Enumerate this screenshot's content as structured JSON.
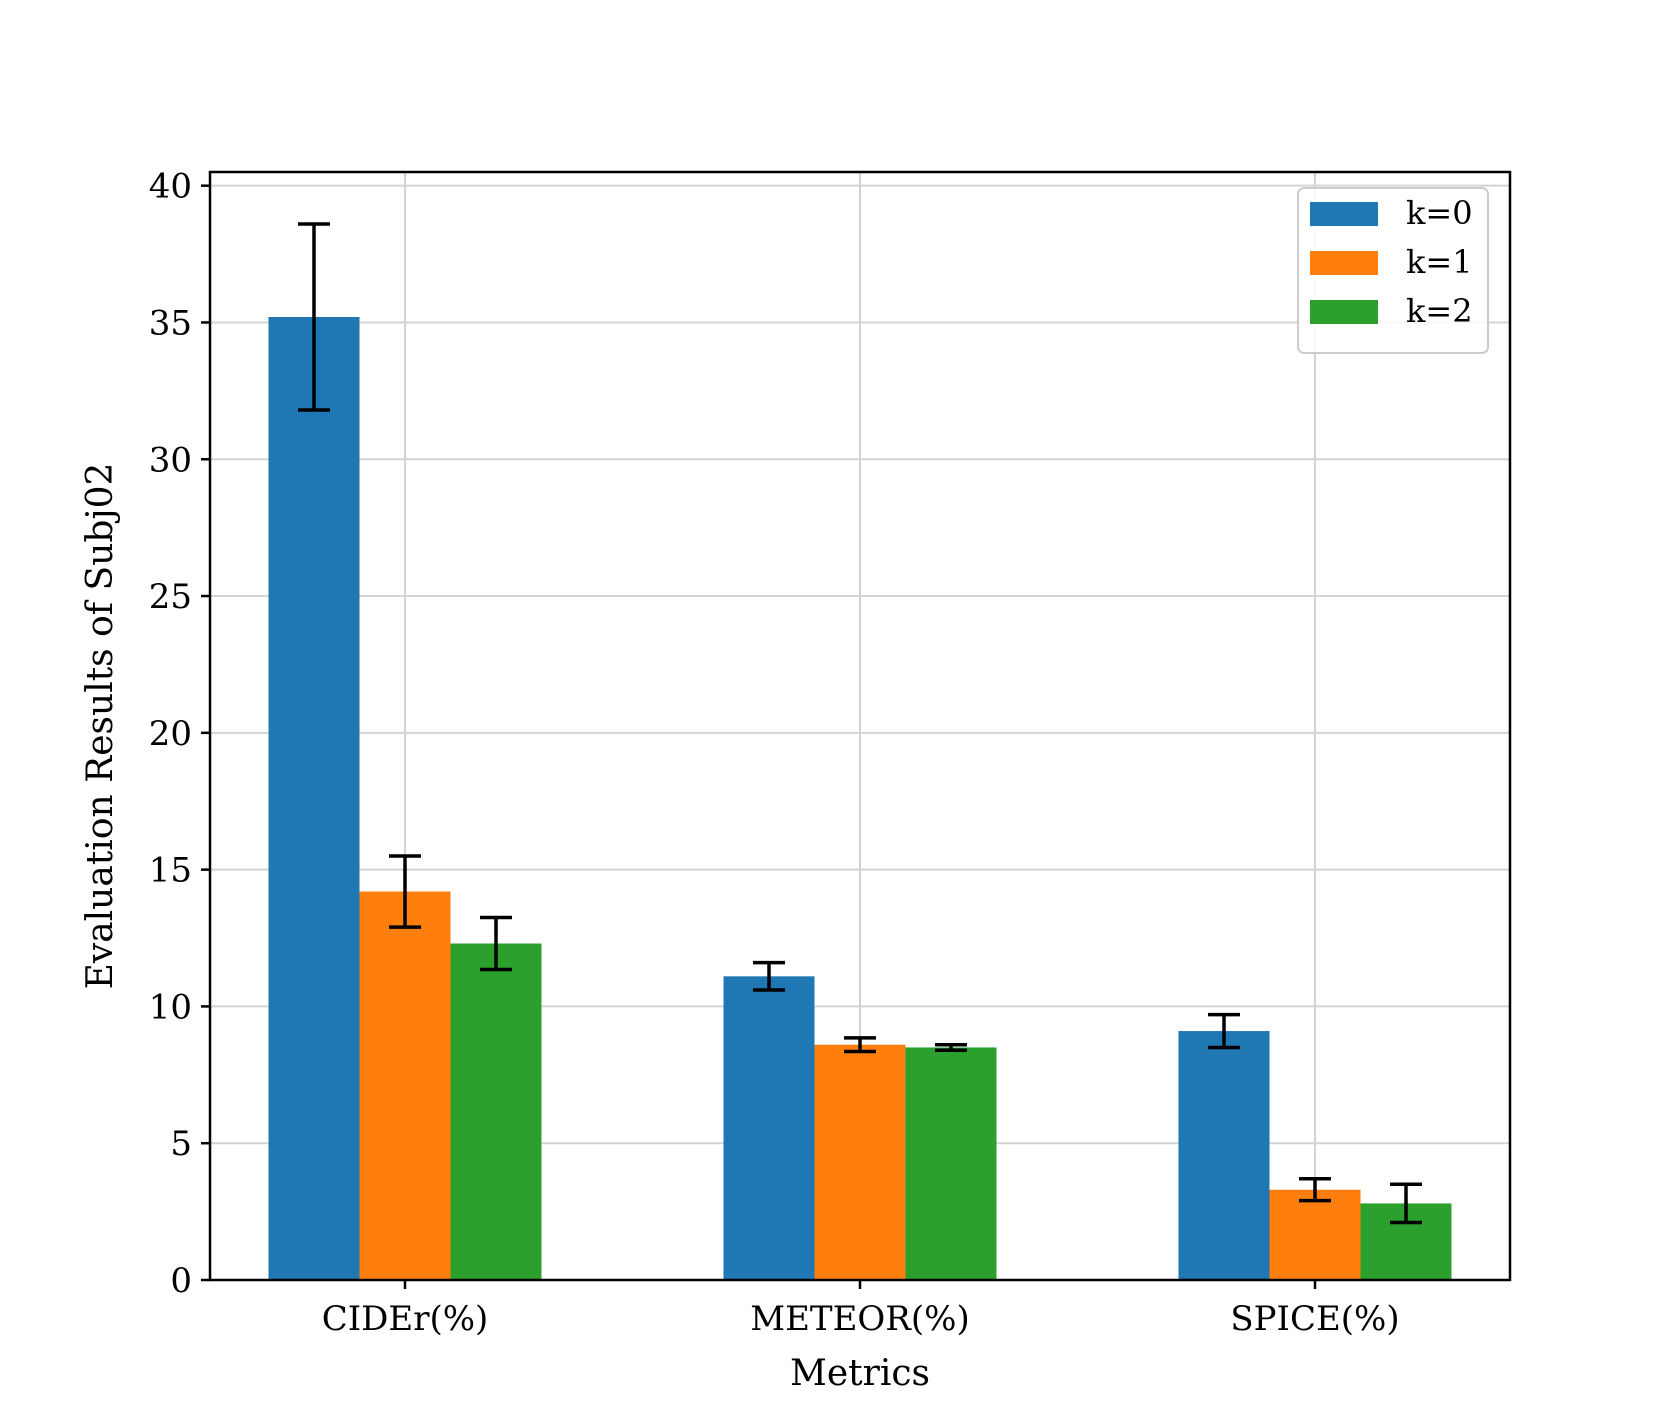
{
  "chart_data": {
    "type": "bar",
    "xlabel": "Metrics",
    "ylabel": "Evaluation Results of Subj02",
    "categories": [
      "CIDEr(%)",
      "METEOR(%)",
      "SPICE(%)"
    ],
    "ylim": [
      0,
      40.5
    ],
    "yticks": [
      0,
      5,
      10,
      15,
      20,
      25,
      30,
      35,
      40
    ],
    "grid": true,
    "legend_position": "top-right",
    "series": [
      {
        "name": "k=0",
        "color": "#1f77b4",
        "values": [
          35.2,
          11.1,
          9.1
        ],
        "errors": [
          3.4,
          0.5,
          0.6
        ]
      },
      {
        "name": "k=1",
        "color": "#ff7f0e",
        "values": [
          14.2,
          8.6,
          3.3
        ],
        "errors": [
          1.3,
          0.25,
          0.4
        ]
      },
      {
        "name": "k=2",
        "color": "#2ca02c",
        "values": [
          12.3,
          8.5,
          2.8
        ],
        "errors": [
          0.95,
          0.1,
          0.7
        ]
      }
    ]
  }
}
